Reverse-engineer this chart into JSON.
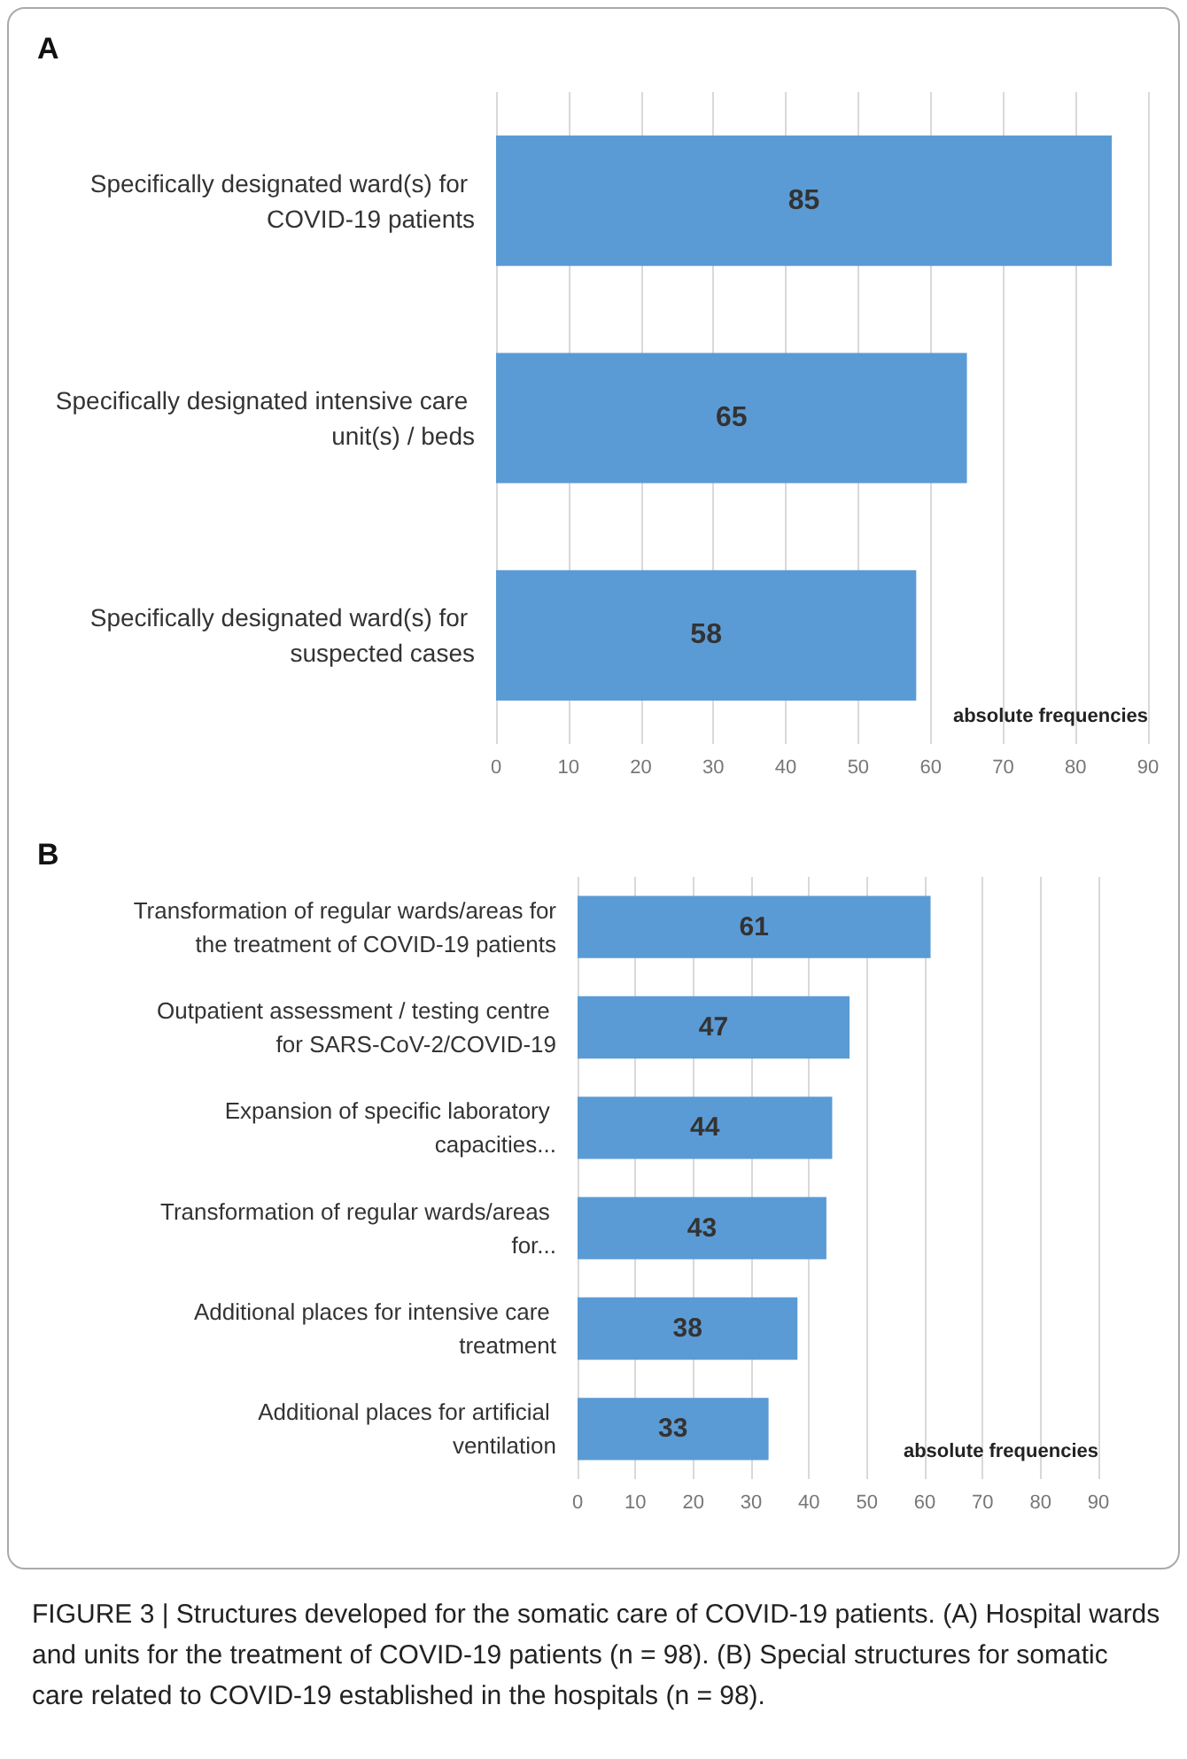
{
  "chart_data": [
    {
      "type": "bar",
      "orientation": "horizontal",
      "title": "A",
      "xlabel": "absolute frequencies",
      "categories": [
        "Specifically designated ward(s) for COVID-19 patients",
        "Specifically designated intensive care unit(s) / beds",
        "Specifically designated ward(s) for suspected cases"
      ],
      "values": [
        85,
        65,
        58
      ],
      "color": "#5b9bd5",
      "data_labels": true,
      "xlim": [
        0,
        90
      ],
      "xticks": [
        0,
        10,
        20,
        30,
        40,
        50,
        60,
        70,
        80,
        90
      ],
      "grid": "x"
    },
    {
      "type": "bar",
      "orientation": "horizontal",
      "title": "B",
      "xlabel": "absolute frequencies",
      "categories": [
        "Transformation of regular wards/areas for the treatment of COVID-19 patients",
        "Outpatient assessment / testing centre for SARS-CoV-2/COVID-19",
        "Expansion of specific laboratory capacities...",
        "Transformation of regular wards/areas for...",
        "Additional places for intensive care treatment",
        "Additional places for artificial ventilation"
      ],
      "values": [
        61,
        47,
        44,
        43,
        38,
        33
      ],
      "color": "#5b9bd5",
      "data_labels": true,
      "xlim": [
        0,
        90
      ],
      "xticks": [
        0,
        10,
        20,
        30,
        40,
        50,
        60,
        70,
        80,
        90
      ],
      "grid": "x",
      "annotations": [
        "FIGURE 3 | Structures developed for the somatic care of COVID-19 patients. (A) Hospital wards and units for the treatment of COVID-19 patients (n = 98). (B) Special structures for somatic care related to COVID-19 established in the hospitals (n = 98)."
      ]
    }
  ]
}
